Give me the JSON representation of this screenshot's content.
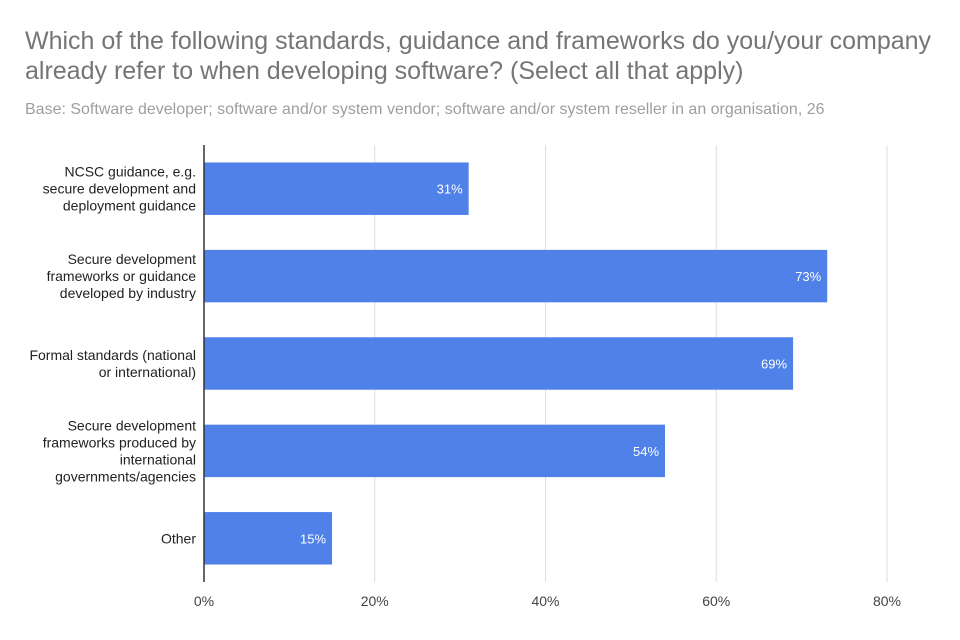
{
  "title": "Which of the following standards, guidance and frameworks do you/your company already refer to when developing software? (Select all that apply)",
  "subtitle": "Base: Software developer; software and/or system vendor; software and/or system reseller in an organisation, 26",
  "colors": {
    "bar": "#4f81e8",
    "grid": "#dddddd",
    "axis": "#333333"
  },
  "chart_data": {
    "type": "bar",
    "orientation": "horizontal",
    "categories": [
      "NCSC guidance, e.g. secure development and deployment guidance",
      "Secure development frameworks or guidance developed by industry",
      "Formal standards (national or international)",
      "Secure development frameworks produced by international governments/agencies",
      "Other"
    ],
    "category_lines": [
      [
        "NCSC guidance, e.g.",
        "secure development and",
        "deployment guidance"
      ],
      [
        "Secure development",
        "frameworks or guidance",
        "developed by industry"
      ],
      [
        "Formal standards (national",
        "or international)"
      ],
      [
        "Secure development",
        "frameworks produced by",
        "international",
        "governments/agencies"
      ],
      [
        "Other"
      ]
    ],
    "values": [
      31,
      73,
      69,
      54,
      15
    ],
    "data_labels": [
      "31%",
      "73%",
      "69%",
      "54%",
      "15%"
    ],
    "xlim": [
      0,
      80
    ],
    "xticks": [
      0,
      20,
      40,
      60,
      80
    ],
    "xtick_labels": [
      "0%",
      "20%",
      "40%",
      "60%",
      "80%"
    ],
    "grid": true,
    "legend": "none"
  }
}
